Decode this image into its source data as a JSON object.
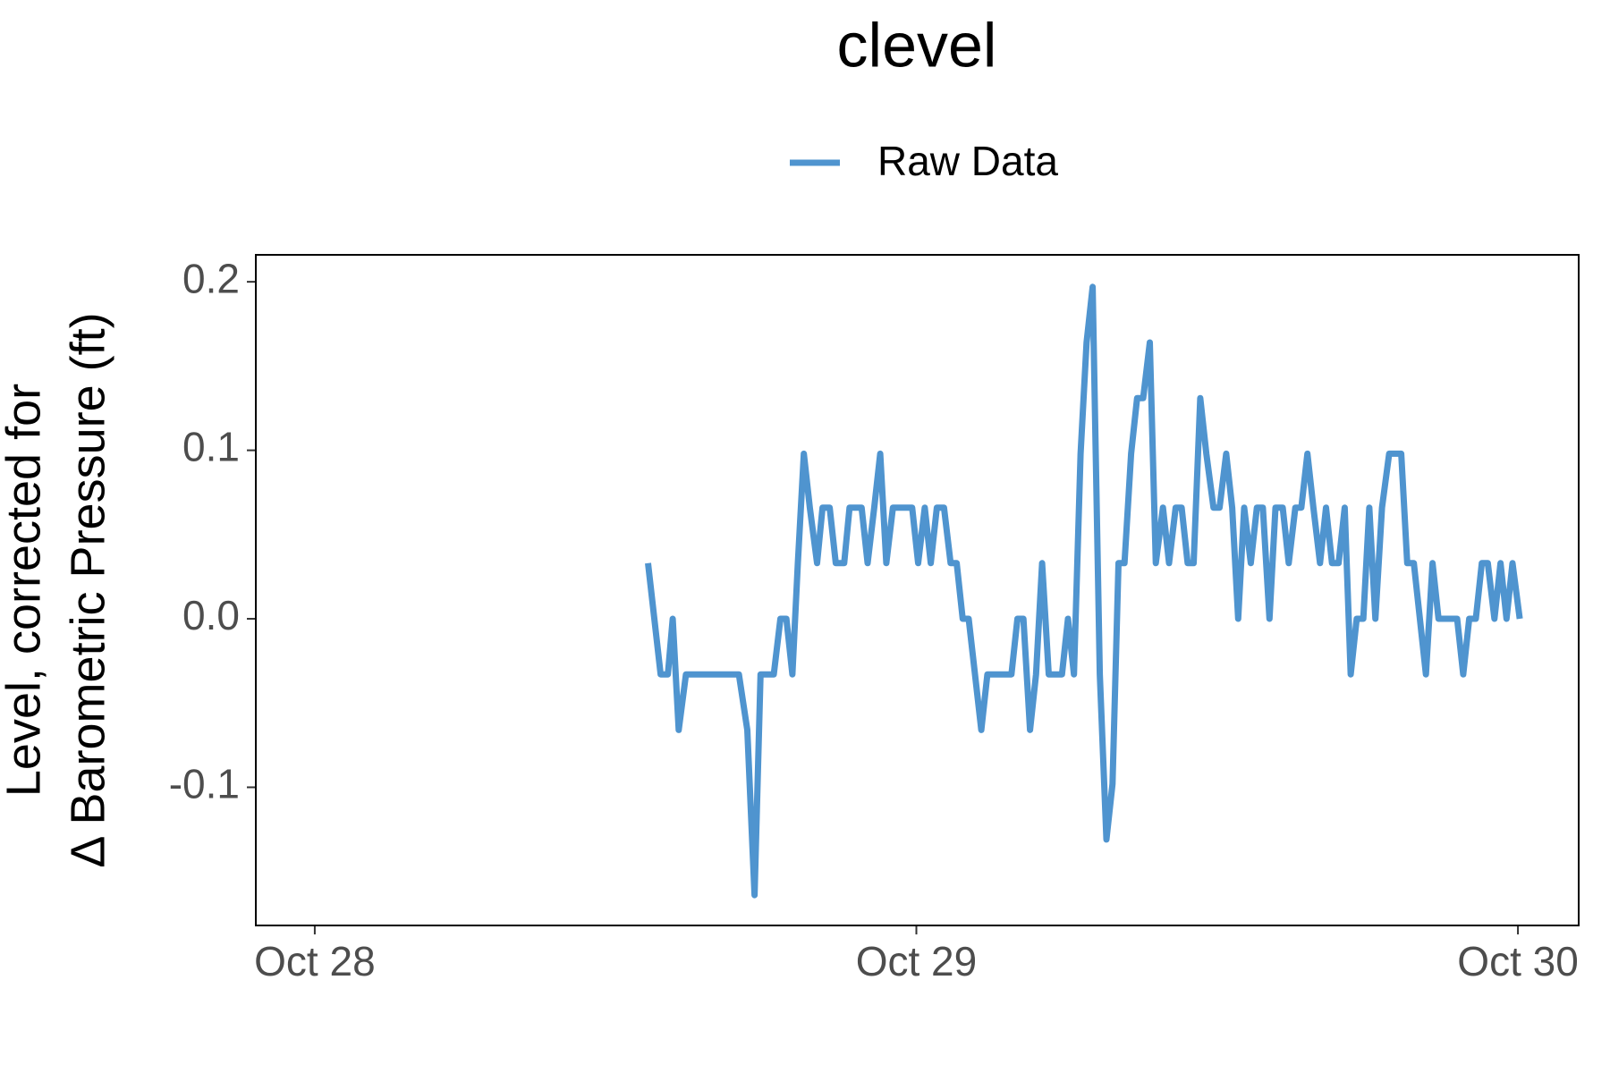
{
  "chart_data": {
    "type": "line",
    "title": "clevel",
    "y_label": [
      "Level, corrected for",
      "Δ Barometric Pressure (ft)"
    ],
    "x": [
      28.554,
      28.575,
      28.587,
      28.595,
      28.605,
      28.617,
      28.705,
      28.719,
      28.731,
      28.741,
      28.763,
      28.774,
      28.784,
      28.794,
      28.803,
      28.813,
      28.823,
      28.835,
      28.844,
      28.856,
      28.866,
      28.88,
      28.889,
      28.909,
      28.919,
      28.93,
      28.94,
      28.95,
      28.961,
      28.993,
      29.003,
      29.014,
      29.024,
      29.034,
      29.046,
      29.057,
      29.067,
      29.077,
      29.087,
      29.108,
      29.118,
      29.158,
      29.168,
      29.178,
      29.189,
      29.199,
      29.209,
      29.22,
      29.242,
      29.252,
      29.262,
      29.273,
      29.283,
      29.293,
      29.305,
      29.316,
      29.326,
      29.336,
      29.346,
      29.357,
      29.367,
      29.377,
      29.388,
      29.398,
      29.41,
      29.42,
      29.431,
      29.441,
      29.451,
      29.461,
      29.472,
      29.482,
      29.494,
      29.504,
      29.515,
      29.525,
      29.535,
      29.545,
      29.556,
      29.566,
      29.576,
      29.587,
      29.597,
      29.609,
      29.619,
      29.63,
      29.64,
      29.65,
      29.66,
      29.671,
      29.681,
      29.691,
      29.702,
      29.712,
      29.722,
      29.732,
      29.743,
      29.753,
      29.763,
      29.774,
      29.786,
      29.806,
      29.816,
      29.827,
      29.847,
      29.858,
      29.868,
      29.899,
      29.909,
      29.919,
      29.93,
      29.94,
      29.95,
      29.961,
      29.971,
      29.981,
      29.991,
      30.003
    ],
    "series": [
      {
        "name": "Raw Data",
        "color": "#4f94cf",
        "values": [
          0.033,
          -0.033,
          -0.033,
          0,
          -0.066,
          -0.033,
          -0.033,
          -0.066,
          -0.164,
          -0.033,
          -0.033,
          0,
          0,
          -0.033,
          0.033,
          0.098,
          0.066,
          0.033,
          0.066,
          0.066,
          0.033,
          0.033,
          0.066,
          0.066,
          0.033,
          0.066,
          0.098,
          0.033,
          0.066,
          0.066,
          0.033,
          0.066,
          0.033,
          0.066,
          0.066,
          0.033,
          0.033,
          0,
          0,
          -0.066,
          -0.033,
          -0.033,
          0,
          0,
          -0.066,
          -0.033,
          0.033,
          -0.033,
          -0.033,
          0,
          -0.033,
          0.098,
          0.164,
          0.197,
          -0.033,
          -0.131,
          -0.098,
          0.033,
          0.033,
          0.098,
          0.131,
          0.131,
          0.164,
          0.033,
          0.066,
          0.033,
          0.066,
          0.066,
          0.033,
          0.033,
          0.131,
          0.098,
          0.066,
          0.066,
          0.098,
          0.066,
          0,
          0.066,
          0.033,
          0.066,
          0.066,
          0,
          0.066,
          0.066,
          0.033,
          0.066,
          0.066,
          0.098,
          0.066,
          0.033,
          0.066,
          0.033,
          0.033,
          0.066,
          -0.033,
          0,
          0,
          0.066,
          0,
          0.066,
          0.098,
          0.098,
          0.033,
          0.033,
          -0.033,
          0.033,
          0,
          0,
          -0.033,
          0,
          0,
          0.033,
          0.033,
          0,
          0.033,
          0,
          0.033,
          0
        ]
      }
    ],
    "xlim": [
      27.902,
      30.101
    ],
    "xticks": [
      {
        "value": 28,
        "label": "Oct 28"
      },
      {
        "value": 29,
        "label": "Oct 29"
      },
      {
        "value": 30,
        "label": "Oct 30"
      }
    ],
    "ylim": [
      -0.182,
      0.216
    ],
    "yticks": [
      -0.1,
      {
        "value": 0,
        "label": "0.0"
      },
      0.1,
      0.2
    ]
  }
}
